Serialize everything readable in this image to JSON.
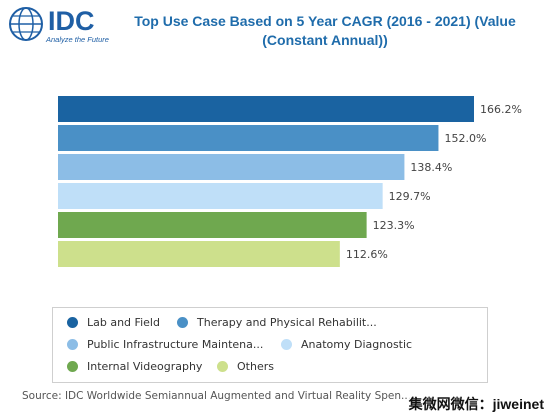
{
  "logo": {
    "text": "IDC",
    "tagline": "Analyze the Future"
  },
  "title_line1": "Top Use Case Based on 5 Year CAGR (2016 - 2021) (Value",
  "title_line2": "(Constant Annual))",
  "chart_data": {
    "type": "bar",
    "orientation": "horizontal",
    "title": "Top Use Case Based on 5 Year CAGR (2016 - 2021) (Value (Constant Annual))",
    "categories": [
      "Lab and Field",
      "Therapy and Physical Rehabilit...",
      "Public Infrastructure Maintena...",
      "Anatomy Diagnostic",
      "Internal Videography",
      "Others"
    ],
    "values": [
      166.2,
      152.0,
      138.4,
      129.7,
      123.3,
      112.6
    ],
    "value_labels": [
      "166.2%",
      "152.0%",
      "138.4%",
      "129.7%",
      "123.3%",
      "112.6%"
    ],
    "colors": [
      "#1a63a1",
      "#4a90c6",
      "#8cbde6",
      "#bfdff8",
      "#6fa84f",
      "#cde08c"
    ],
    "xlim": [
      0,
      166.2
    ],
    "grid": false,
    "legend_position": "bottom"
  },
  "source": "Source: IDC Worldwide Semiannual Augmented and Virtual Reality Spen...",
  "watermark": "集微网微信：jiweinet"
}
